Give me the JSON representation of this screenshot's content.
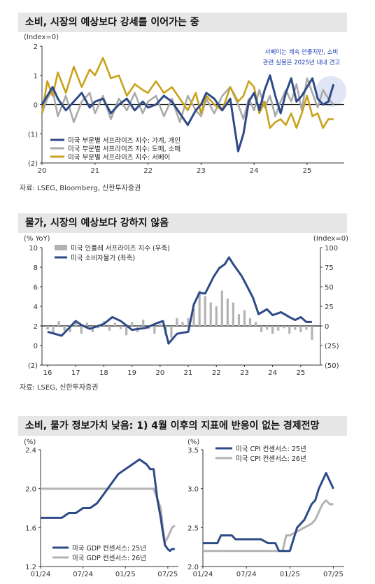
{
  "sections": [
    {
      "title": "소비, 시장의 예상보다 강세를 이어가는 중",
      "source": "자료: LSEG, Bloomberg, 신한투자증권"
    },
    {
      "title": "물가, 시장의 예상보다 강하지 않음",
      "source": "자료: LSEG, 신한투자증권"
    },
    {
      "title": "소비, 물가 정보가치 낮음: 1) 4월 이후의 지표에 반응이 없는 경제전망",
      "source": ""
    }
  ],
  "chart_data": [
    {
      "type": "line",
      "unit_label": "(Index=0)",
      "x_ticks": [
        "20",
        "21",
        "22",
        "23",
        "24",
        "25"
      ],
      "y_ticks": [
        "2",
        "1",
        "0",
        "(1)",
        "(2)"
      ],
      "ylim": [
        -2,
        2
      ],
      "annotation": [
        "서베이는 계속 안좋지만, 소비",
        "관련 실물은 2025년 내내 견고"
      ],
      "series": [
        {
          "name": "미국 부문별 서프라이즈 지수: 가계, 개인",
          "color": "#2e4a87",
          "x": [
            2020.0,
            2020.1,
            2020.2,
            2020.3,
            2020.45,
            2020.6,
            2020.75,
            2020.9,
            2021.0,
            2021.15,
            2021.3,
            2021.45,
            2021.6,
            2021.75,
            2021.9,
            2022.0,
            2022.15,
            2022.3,
            2022.45,
            2022.6,
            2022.75,
            2022.9,
            2023.0,
            2023.1,
            2023.25,
            2023.4,
            2023.55,
            2023.7,
            2023.8,
            2023.9,
            2024.0,
            2024.1,
            2024.2,
            2024.3,
            2024.4,
            2024.5,
            2024.6,
            2024.7,
            2024.8,
            2024.9,
            2025.0,
            2025.1,
            2025.2,
            2025.3,
            2025.4,
            2025.5
          ],
          "values": [
            0.0,
            0.3,
            0.6,
            0.2,
            -0.2,
            0.1,
            0.4,
            -0.1,
            0.1,
            0.2,
            -0.3,
            0.0,
            0.2,
            -0.2,
            0.1,
            -0.1,
            0.0,
            0.3,
            0.1,
            -0.3,
            -0.7,
            -0.2,
            0.0,
            0.4,
            0.2,
            -0.2,
            0.2,
            -1.6,
            -1.0,
            0.1,
            0.4,
            -0.2,
            0.5,
            1.0,
            0.3,
            -0.3,
            0.4,
            0.9,
            0.1,
            0.3,
            0.6,
            0.9,
            0.2,
            0.0,
            0.1,
            0.7
          ]
        },
        {
          "name": "미국 부문별 서프라이즈 지수: 도매, 소매",
          "color": "#aaaaaa",
          "x": [
            2020.0,
            2020.1,
            2020.2,
            2020.3,
            2020.45,
            2020.6,
            2020.75,
            2020.9,
            2021.0,
            2021.15,
            2021.3,
            2021.45,
            2021.6,
            2021.75,
            2021.9,
            2022.0,
            2022.15,
            2022.3,
            2022.45,
            2022.6,
            2022.75,
            2022.9,
            2023.0,
            2023.1,
            2023.25,
            2023.4,
            2023.55,
            2023.7,
            2023.8,
            2023.9,
            2024.0,
            2024.1,
            2024.2,
            2024.3,
            2024.4,
            2024.5,
            2024.6,
            2024.7,
            2024.8,
            2024.9,
            2025.0,
            2025.1,
            2025.2,
            2025.3,
            2025.4,
            2025.5
          ],
          "values": [
            -0.3,
            0.2,
            0.5,
            -0.4,
            0.3,
            -0.6,
            0.1,
            0.4,
            -0.3,
            0.3,
            -0.5,
            0.2,
            -0.2,
            0.4,
            -0.3,
            0.1,
            0.3,
            -0.4,
            0.2,
            -0.6,
            0.3,
            -0.2,
            -0.4,
            0.2,
            -0.3,
            0.3,
            0.6,
            0.0,
            -0.5,
            0.2,
            -0.2,
            0.5,
            -0.1,
            0.3,
            -0.4,
            0.1,
            0.5,
            0.1,
            0.7,
            -0.2,
            0.9,
            0.4,
            -0.1,
            0.5,
            0.2,
            0.0
          ]
        },
        {
          "name": "미국 부문별 서프라이즈 지수: 서베이",
          "color": "#c9a21a",
          "x": [
            2020.0,
            2020.1,
            2020.2,
            2020.3,
            2020.45,
            2020.6,
            2020.75,
            2020.9,
            2021.0,
            2021.15,
            2021.3,
            2021.45,
            2021.6,
            2021.75,
            2021.9,
            2022.0,
            2022.15,
            2022.3,
            2022.45,
            2022.6,
            2022.75,
            2022.9,
            2023.0,
            2023.1,
            2023.25,
            2023.4,
            2023.55,
            2023.7,
            2023.8,
            2023.9,
            2024.0,
            2024.1,
            2024.2,
            2024.3,
            2024.4,
            2024.5,
            2024.6,
            2024.7,
            2024.8,
            2024.9,
            2025.0,
            2025.1,
            2025.2,
            2025.3,
            2025.4,
            2025.5
          ],
          "values": [
            -0.3,
            0.8,
            0.3,
            1.1,
            0.4,
            1.3,
            0.6,
            1.2,
            1.0,
            1.6,
            0.9,
            1.0,
            0.3,
            0.7,
            0.5,
            0.4,
            0.8,
            0.4,
            0.6,
            0.2,
            -0.2,
            0.4,
            -0.3,
            0.3,
            0.0,
            -0.2,
            0.6,
            0.1,
            0.3,
            0.8,
            0.6,
            -0.3,
            0.1,
            -0.8,
            -0.6,
            -0.5,
            -0.7,
            -0.3,
            -0.8,
            -0.3,
            0.3,
            -0.4,
            -0.3,
            -0.8,
            -0.5,
            -0.5
          ]
        }
      ]
    },
    {
      "type": "bar_line",
      "left_unit": "(% YoY)",
      "right_unit": "(Index=0)",
      "x_ticks": [
        "16",
        "17",
        "18",
        "19",
        "20",
        "21",
        "22",
        "23",
        "24",
        "25"
      ],
      "y_left_ticks": [
        "10",
        "8",
        "6",
        "4",
        "2",
        "0",
        "(2)"
      ],
      "y_right_ticks": [
        "100",
        "75",
        "50",
        "25",
        "0",
        "(25)",
        "(50)"
      ],
      "ylim_left": [
        -2,
        10
      ],
      "ylim_right": [
        -50,
        100
      ],
      "series": [
        {
          "name": "미국 인플레 서프라이즈 지수 (우축)",
          "kind": "bar",
          "color": "#b3b3b3",
          "x": [
            2016.0,
            2016.2,
            2016.4,
            2016.6,
            2016.8,
            2017.0,
            2017.2,
            2017.4,
            2017.6,
            2017.8,
            2018.0,
            2018.2,
            2018.4,
            2018.6,
            2018.8,
            2019.0,
            2019.2,
            2019.4,
            2019.6,
            2019.8,
            2020.0,
            2020.2,
            2020.4,
            2020.6,
            2020.8,
            2021.0,
            2021.2,
            2021.4,
            2021.6,
            2021.8,
            2022.0,
            2022.2,
            2022.4,
            2022.6,
            2022.8,
            2023.0,
            2023.2,
            2023.4,
            2023.6,
            2023.8,
            2024.0,
            2024.2,
            2024.4,
            2024.6,
            2024.8,
            2025.0,
            2025.2,
            2025.4
          ],
          "values": [
            -5,
            -10,
            6,
            -6,
            -8,
            5,
            -10,
            4,
            -8,
            -3,
            6,
            -6,
            4,
            -4,
            -12,
            5,
            -8,
            8,
            -4,
            -10,
            3,
            -12,
            -15,
            10,
            5,
            10,
            22,
            45,
            38,
            30,
            25,
            45,
            35,
            30,
            15,
            20,
            10,
            5,
            -8,
            -5,
            -10,
            -6,
            -3,
            -10,
            -5,
            -8,
            -5,
            -18
          ]
        },
        {
          "name": "미국 소비자물가 (좌축)",
          "kind": "line",
          "color": "#2e4a87",
          "x": [
            2016.0,
            2016.5,
            2017.0,
            2017.2,
            2017.5,
            2018.0,
            2018.3,
            2018.6,
            2019.0,
            2019.5,
            2019.9,
            2020.1,
            2020.3,
            2020.6,
            2021.0,
            2021.2,
            2021.4,
            2021.6,
            2021.9,
            2022.1,
            2022.3,
            2022.45,
            2022.6,
            2022.9,
            2023.1,
            2023.3,
            2023.5,
            2023.8,
            2024.0,
            2024.3,
            2024.6,
            2024.8,
            2025.0,
            2025.2,
            2025.4
          ],
          "values": [
            1.4,
            1.0,
            2.5,
            2.1,
            1.7,
            2.2,
            2.9,
            2.5,
            1.6,
            1.8,
            2.3,
            2.5,
            0.2,
            1.2,
            1.4,
            4.2,
            5.4,
            5.3,
            7.0,
            7.9,
            8.3,
            9.0,
            8.3,
            7.1,
            6.0,
            4.9,
            3.2,
            3.7,
            3.1,
            3.4,
            2.9,
            2.6,
            2.9,
            2.4,
            2.4
          ]
        }
      ]
    },
    {
      "type": "line",
      "unit_label": "(%)",
      "x_ticks": [
        "01/24",
        "07/24",
        "01/25",
        "07/25"
      ],
      "y_ticks": [
        "2.4",
        "2.0",
        "1.6",
        "1.2"
      ],
      "ylim": [
        1.2,
        2.4
      ],
      "series": [
        {
          "name": "미국 GDP 컨센서스: 25년",
          "color": "#2e4a87",
          "x": [
            0,
            3,
            4,
            5,
            6,
            7,
            8,
            9,
            10,
            11,
            12,
            13,
            14,
            15,
            15.5,
            16,
            16.5,
            17,
            17.3,
            17.6,
            18,
            18.3,
            18.6,
            19
          ],
          "values": [
            1.7,
            1.7,
            1.75,
            1.75,
            1.8,
            1.8,
            1.85,
            1.95,
            2.05,
            2.15,
            2.2,
            2.25,
            2.3,
            2.25,
            2.2,
            2.2,
            1.9,
            1.7,
            1.55,
            1.42,
            1.38,
            1.36,
            1.38,
            1.38
          ]
        },
        {
          "name": "미국 GDP 컨센서스: 26년",
          "color": "#b3b3b3",
          "x": [
            0,
            15,
            16,
            16.5,
            17,
            17.3,
            17.6,
            18,
            18.3,
            18.6,
            19
          ],
          "values": [
            2.0,
            2.0,
            2.0,
            1.9,
            1.8,
            1.6,
            1.45,
            1.5,
            1.55,
            1.6,
            1.62
          ]
        }
      ]
    },
    {
      "type": "line",
      "unit_label": "(%)",
      "x_ticks": [
        "01/24",
        "07/24",
        "01/25",
        "07/25"
      ],
      "y_ticks": [
        "3.5",
        "3.0",
        "2.5",
        "2.0"
      ],
      "ylim": [
        2.0,
        3.5
      ],
      "series": [
        {
          "name": "미국 CPI 컨센서스: 25년",
          "color": "#2e4a87",
          "x": [
            0,
            2,
            2.5,
            4,
            4.5,
            8,
            9,
            10,
            10.5,
            12,
            13,
            14,
            14.5,
            15,
            15.5,
            16,
            16.5,
            17,
            17.5,
            18
          ],
          "values": [
            2.3,
            2.3,
            2.4,
            2.4,
            2.35,
            2.35,
            2.3,
            2.3,
            2.2,
            2.2,
            2.5,
            2.6,
            2.7,
            2.8,
            2.85,
            3.0,
            3.1,
            3.2,
            3.1,
            3.0
          ]
        },
        {
          "name": "미국 CPI 컨센서스: 26년",
          "color": "#b3b3b3",
          "x": [
            0,
            8,
            11,
            11.5,
            12,
            13,
            14,
            15,
            15.5,
            16,
            16.5,
            17,
            17.5,
            18
          ],
          "values": [
            2.2,
            2.2,
            2.2,
            2.4,
            2.4,
            2.45,
            2.5,
            2.55,
            2.6,
            2.7,
            2.8,
            2.85,
            2.8,
            2.8
          ]
        }
      ]
    }
  ]
}
